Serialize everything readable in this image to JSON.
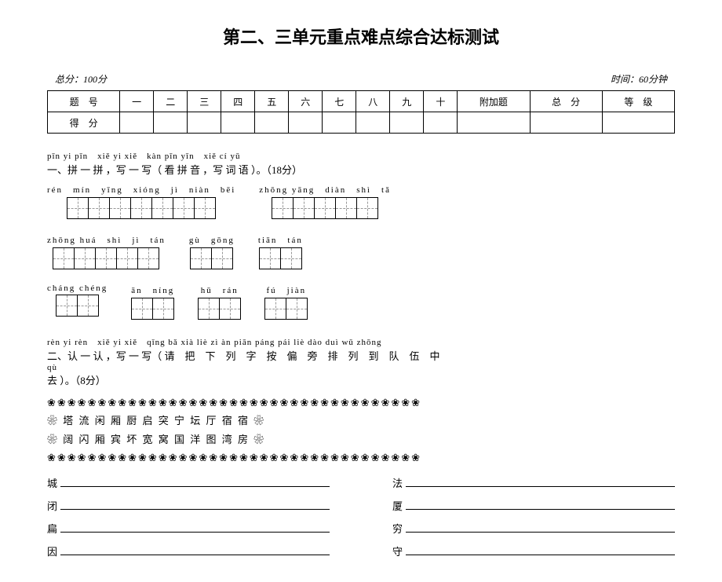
{
  "title": "第二、三单元重点难点综合达标测试",
  "scoreMeta": {
    "full": "总分：100分",
    "time": "时间：60分钟"
  },
  "scoreTable": {
    "row1": [
      "题　号",
      "一",
      "二",
      "三",
      "四",
      "五",
      "六",
      "七",
      "八",
      "九",
      "十",
      "附加题",
      "总　分",
      "等　级"
    ],
    "row2Label": "得　分"
  },
  "section1": {
    "pinyinTitle": "pīn yi pīn　xiě yi xiě　kàn pīn yīn　xiě cí yǔ",
    "label": "一、拼 一 拼 ，写 一 写（ 看 拼 音 ，写 词 语 ）。（18分）",
    "rows": [
      [
        {
          "py": "rén　mín　yīng　xióng　jì　niàn　bēi",
          "n": 7
        },
        {
          "py": "zhōng yāng　diàn　shì　tǎ",
          "n": 5
        }
      ],
      [
        {
          "py": "zhōng huá　shì　jì　tán",
          "n": 5
        },
        {
          "py": "gù　gōng",
          "n": 2
        },
        {
          "py": "tiān　tán",
          "n": 2
        }
      ],
      [
        {
          "py": "cháng chéng",
          "n": 2
        },
        {
          "py": "ān　níng",
          "n": 2
        },
        {
          "py": "hū　rán",
          "n": 2
        },
        {
          "py": "fú　jiàn",
          "n": 2
        }
      ]
    ]
  },
  "section2": {
    "pinyinTitle": "rèn yi rèn　xiě yi xiě　qǐng bǎ xià liè zì àn piān páng pái liè dào duì wǔ zhōng",
    "label": "二、认 一 认 ，写 一 写（ 请　把　下　列　字　按　偏　旁　排　列　到　队　伍　中",
    "pinyinTitle2": "qù",
    "label2": "去 ）。（8分）",
    "flowerTop": "❀❀❀❀❀❀❀❀❀❀❀❀❀❀❀❀❀❀❀❀❀❀❀❀❀❀❀❀❀❀❀❀❀❀❀❀❀",
    "flowerLine1": "❀ 塔 流 闲 厢 厨 启 突 宁 坛 厅 宿 宿 ❀",
    "flowerLine2": "❀ 阔 闪 厢 宾 坏 宽 窝 国 洋 图 湾 房 ❀",
    "flowerBottom": "❀❀❀❀❀❀❀❀❀❀❀❀❀❀❀❀❀❀❀❀❀❀❀❀❀❀❀❀❀❀❀❀❀❀❀❀❀",
    "left": [
      "城",
      "闭",
      "扁",
      "因"
    ],
    "right": [
      "法",
      "厦",
      "穷",
      "守"
    ]
  }
}
